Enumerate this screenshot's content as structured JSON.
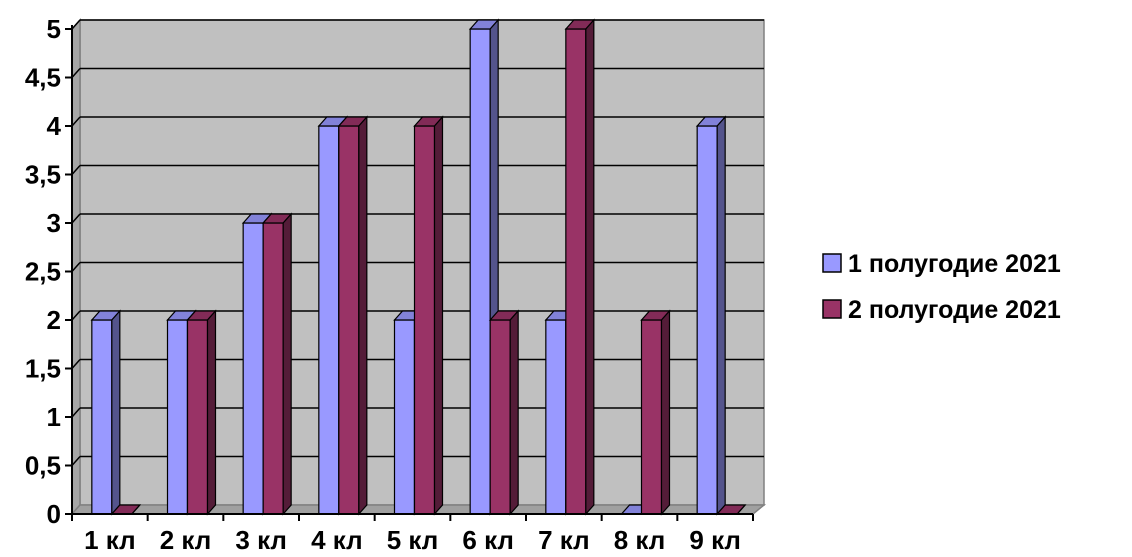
{
  "chart_data": {
    "type": "bar",
    "title": "",
    "xlabel": "",
    "ylabel": "",
    "categories": [
      "1 кл",
      "2 кл",
      "3 кл",
      "4 кл",
      "5 кл",
      "6 кл",
      "7 кл",
      "8 кл",
      "9 кл"
    ],
    "series": [
      {
        "name": "1 полугодие 2021",
        "color": "#9999ff",
        "values": [
          2,
          2,
          3,
          4,
          2,
          5,
          2,
          0,
          4
        ]
      },
      {
        "name": "2 полугодие 2021",
        "color": "#993366",
        "values": [
          0,
          2,
          3,
          4,
          4,
          2,
          5,
          2,
          0
        ]
      }
    ],
    "ylim": [
      0,
      5
    ],
    "yticks": [
      0,
      0.5,
      1,
      1.5,
      2,
      2.5,
      3,
      3.5,
      4,
      4.5,
      5
    ],
    "ytick_labels": [
      "0",
      "0,5",
      "1",
      "1,5",
      "2",
      "2,5",
      "3",
      "3,5",
      "4",
      "4,5",
      "5"
    ],
    "grid": true,
    "plot_background": "#c0c0c0",
    "legend_position": "right"
  }
}
